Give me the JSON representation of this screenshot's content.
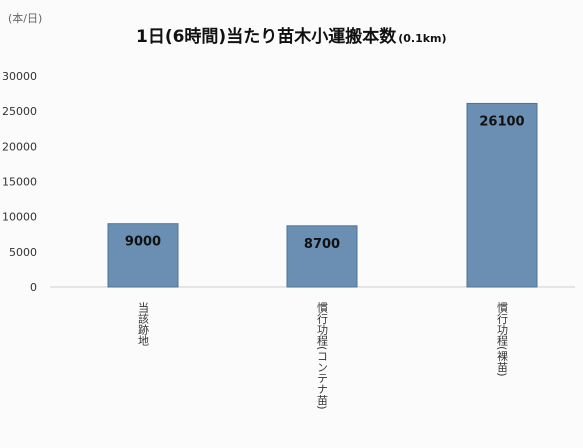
{
  "chart_data": {
    "type": "bar",
    "title": "1日(6時間)当たり苗木小運搬本数",
    "title_suffix": "(0.1km)",
    "yunit": "(本/日)",
    "categories": [
      "当該跡地",
      "慣行功程(コンテナ苗)",
      "慣行功程(裸苗)"
    ],
    "values": [
      9000,
      8700,
      26100
    ],
    "data_labels": [
      "9000",
      "8700",
      "26100"
    ],
    "yticks": [
      "0",
      "5000",
      "10000",
      "15000",
      "20000",
      "25000",
      "30000"
    ],
    "ylim": [
      0,
      30000
    ],
    "grid": false,
    "bar_color": "#6a8fb3"
  }
}
